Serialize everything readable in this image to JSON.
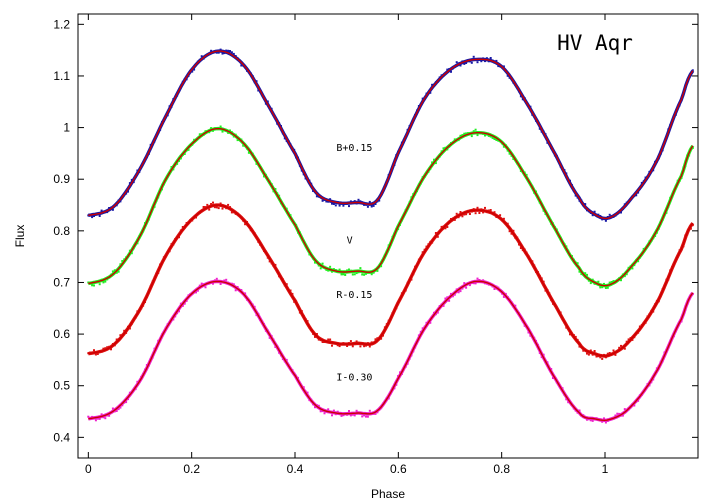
{
  "chart_data": {
    "type": "line",
    "title": "HV Aqr",
    "xlabel": "Phase",
    "ylabel": "Flux",
    "xlim": [
      -0.02,
      1.18
    ],
    "ylim": [
      0.36,
      1.22
    ],
    "xticks": [
      0,
      0.2,
      0.4,
      0.6,
      0.8,
      1
    ],
    "xtick_labels": [
      "0",
      "0.2",
      "0.4",
      "0.6",
      "0.8",
      "1"
    ],
    "yticks": [
      0.4,
      0.5,
      0.6,
      0.7,
      0.8,
      0.9,
      1.0,
      1.1,
      1.2
    ],
    "ytick_labels": [
      "0.4",
      "0.5",
      "0.6",
      "0.7",
      "0.8",
      "0.9",
      "1",
      "1.1",
      "1.2"
    ],
    "grid": false,
    "model_color": "#cc0000",
    "series": [
      {
        "name": "B+0.15",
        "color": "#1a1aa6",
        "label_at": [
          0.48,
          0.955
        ],
        "x": [
          0,
          0.05,
          0.1,
          0.15,
          0.2,
          0.25,
          0.3,
          0.35,
          0.4,
          0.44,
          0.48,
          0.52,
          0.56,
          0.6,
          0.65,
          0.7,
          0.75,
          0.8,
          0.85,
          0.9,
          0.95,
          0.98,
          1.01,
          1.05,
          1.1,
          1.15,
          1.17
        ],
        "y": [
          0.83,
          0.848,
          0.92,
          1.022,
          1.112,
          1.148,
          1.122,
          1.04,
          0.95,
          0.875,
          0.855,
          0.855,
          0.86,
          0.952,
          1.055,
          1.112,
          1.132,
          1.118,
          1.045,
          0.955,
          0.864,
          0.832,
          0.826,
          0.862,
          0.935,
          1.058,
          1.11
        ]
      },
      {
        "name": "V",
        "color": "#22ee22",
        "label_at": [
          0.5,
          0.775
        ],
        "x": [
          0,
          0.05,
          0.1,
          0.15,
          0.2,
          0.25,
          0.3,
          0.35,
          0.4,
          0.44,
          0.48,
          0.52,
          0.56,
          0.6,
          0.65,
          0.7,
          0.75,
          0.8,
          0.85,
          0.9,
          0.95,
          0.98,
          1.01,
          1.05,
          1.1,
          1.15,
          1.17
        ],
        "y": [
          0.698,
          0.718,
          0.79,
          0.9,
          0.968,
          0.998,
          0.97,
          0.895,
          0.812,
          0.742,
          0.722,
          0.722,
          0.728,
          0.81,
          0.905,
          0.966,
          0.99,
          0.972,
          0.9,
          0.81,
          0.728,
          0.7,
          0.696,
          0.73,
          0.8,
          0.91,
          0.965
        ]
      },
      {
        "name": "R-0.15",
        "color": "#dd1111",
        "label_at": [
          0.48,
          0.67
        ],
        "x": [
          0,
          0.05,
          0.1,
          0.15,
          0.2,
          0.25,
          0.3,
          0.35,
          0.4,
          0.44,
          0.48,
          0.52,
          0.56,
          0.6,
          0.65,
          0.7,
          0.75,
          0.8,
          0.85,
          0.9,
          0.95,
          0.98,
          1.01,
          1.05,
          1.1,
          1.15,
          1.17
        ],
        "y": [
          0.562,
          0.58,
          0.648,
          0.752,
          0.822,
          0.85,
          0.822,
          0.748,
          0.665,
          0.598,
          0.582,
          0.582,
          0.588,
          0.662,
          0.758,
          0.818,
          0.84,
          0.822,
          0.752,
          0.662,
          0.582,
          0.562,
          0.56,
          0.59,
          0.66,
          0.768,
          0.815
        ]
      },
      {
        "name": "I-0.30",
        "color": "#ee22cc",
        "label_at": [
          0.48,
          0.51
        ],
        "x": [
          0,
          0.05,
          0.1,
          0.15,
          0.2,
          0.25,
          0.3,
          0.35,
          0.4,
          0.44,
          0.48,
          0.52,
          0.56,
          0.6,
          0.65,
          0.7,
          0.75,
          0.8,
          0.85,
          0.9,
          0.95,
          0.98,
          1.01,
          1.05,
          1.1,
          1.15,
          1.17
        ],
        "y": [
          0.436,
          0.452,
          0.51,
          0.61,
          0.678,
          0.702,
          0.678,
          0.6,
          0.52,
          0.462,
          0.447,
          0.447,
          0.452,
          0.515,
          0.61,
          0.672,
          0.702,
          0.682,
          0.612,
          0.52,
          0.448,
          0.436,
          0.435,
          0.46,
          0.528,
          0.632,
          0.68
        ]
      }
    ]
  }
}
